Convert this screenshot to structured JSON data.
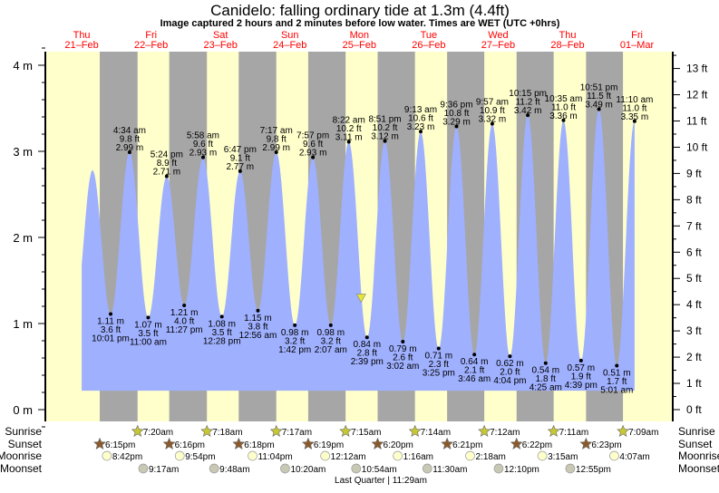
{
  "chart_data": {
    "type": "area",
    "title": "Canidelo: falling  ordinary tide at 1.3m (4.4ft)",
    "subtitle": "Image captured 2 hours and 2 minutes before low water. Times are WET (UTC +0hrs)",
    "ylabel_left_unit": "m",
    "ylabel_right_unit": "ft",
    "ylim_m": [
      -0.15,
      4.15
    ],
    "left_ticks": [
      "0 m",
      "1 m",
      "2 m",
      "3 m",
      "4 m"
    ],
    "right_ticks": [
      "0 ft",
      "1 ft",
      "2 ft",
      "3 ft",
      "4 ft",
      "5 ft",
      "6 ft",
      "7 ft",
      "8 ft",
      "9 ft",
      "10 ft",
      "11 ft",
      "12 ft",
      "13 ft"
    ],
    "days": [
      {
        "dow": "Thu",
        "date": "21–Feb"
      },
      {
        "dow": "Fri",
        "date": "22–Feb"
      },
      {
        "dow": "Sat",
        "date": "23–Feb"
      },
      {
        "dow": "Sun",
        "date": "24–Feb"
      },
      {
        "dow": "Mon",
        "date": "25–Feb"
      },
      {
        "dow": "Tue",
        "date": "26–Feb"
      },
      {
        "dow": "Wed",
        "date": "27–Feb"
      },
      {
        "dow": "Thu",
        "date": "28–Feb"
      },
      {
        "dow": "Fri",
        "date": "01–Mar"
      }
    ],
    "current_level": {
      "m": 1.3,
      "ft": 4.4,
      "state": "falling",
      "day": 4,
      "time": "12:37 pm"
    },
    "unlabeled_start": [
      {
        "day": 0,
        "time": "9:30 am",
        "m": 1.1
      },
      {
        "day": 0,
        "time": "3:45 pm",
        "m": 2.78
      }
    ],
    "events": [
      {
        "type": "low",
        "day": 0,
        "time": "10:01 pm",
        "ft": "3.6 ft",
        "m": "1.11 m",
        "value": 1.11
      },
      {
        "type": "high",
        "day": 1,
        "time": "4:34 am",
        "ft": "9.8 ft",
        "m": "2.99 m",
        "value": 2.99
      },
      {
        "type": "low",
        "day": 1,
        "time": "11:00 am",
        "ft": "3.5 ft",
        "m": "1.07 m",
        "value": 1.07
      },
      {
        "type": "high",
        "day": 1,
        "time": "5:24 pm",
        "ft": "8.9 ft",
        "m": "2.71 m",
        "value": 2.71
      },
      {
        "type": "low",
        "day": 1,
        "time": "11:27 pm",
        "ft": "4.0 ft",
        "m": "1.21 m",
        "value": 1.21
      },
      {
        "type": "high",
        "day": 2,
        "time": "5:58 am",
        "ft": "9.6 ft",
        "m": "2.93 m",
        "value": 2.93
      },
      {
        "type": "low",
        "day": 2,
        "time": "12:28 pm",
        "ft": "3.5 ft",
        "m": "1.08 m",
        "value": 1.08
      },
      {
        "type": "high",
        "day": 2,
        "time": "6:47 pm",
        "ft": "9.1 ft",
        "m": "2.77 m",
        "value": 2.77
      },
      {
        "type": "low",
        "day": 3,
        "time": "12:56 am",
        "ft": "3.8 ft",
        "m": "1.15 m",
        "value": 1.15
      },
      {
        "type": "high",
        "day": 3,
        "time": "7:17 am",
        "ft": "9.8 ft",
        "m": "2.99 m",
        "value": 2.99
      },
      {
        "type": "low",
        "day": 3,
        "time": "1:42 pm",
        "ft": "3.2 ft",
        "m": "0.98 m",
        "value": 0.98
      },
      {
        "type": "high",
        "day": 3,
        "time": "7:57 pm",
        "ft": "9.6 ft",
        "m": "2.93 m",
        "value": 2.93
      },
      {
        "type": "low",
        "day": 4,
        "time": "2:07 am",
        "ft": "3.2 ft",
        "m": "0.98 m",
        "value": 0.98
      },
      {
        "type": "high",
        "day": 4,
        "time": "8:22 am",
        "ft": "10.2 ft",
        "m": "3.11 m",
        "value": 3.11
      },
      {
        "type": "low",
        "day": 4,
        "time": "2:39 pm",
        "ft": "2.8 ft",
        "m": "0.84 m",
        "value": 0.84
      },
      {
        "type": "high",
        "day": 4,
        "time": "8:51 pm",
        "ft": "10.2 ft",
        "m": "3.12 m",
        "value": 3.12
      },
      {
        "type": "low",
        "day": 5,
        "time": "3:02 am",
        "ft": "2.6 ft",
        "m": "0.79 m",
        "value": 0.79
      },
      {
        "type": "high",
        "day": 5,
        "time": "9:13 am",
        "ft": "10.6 ft",
        "m": "3.23 m",
        "value": 3.23
      },
      {
        "type": "low",
        "day": 5,
        "time": "3:25 pm",
        "ft": "2.3 ft",
        "m": "0.71 m",
        "value": 0.71
      },
      {
        "type": "high",
        "day": 5,
        "time": "9:36 pm",
        "ft": "10.8 ft",
        "m": "3.29 m",
        "value": 3.29
      },
      {
        "type": "low",
        "day": 6,
        "time": "3:46 am",
        "ft": "2.1 ft",
        "m": "0.64 m",
        "value": 0.64
      },
      {
        "type": "high",
        "day": 6,
        "time": "9:57 am",
        "ft": "10.9 ft",
        "m": "3.32 m",
        "value": 3.32
      },
      {
        "type": "low",
        "day": 6,
        "time": "4:04 pm",
        "ft": "2.0 ft",
        "m": "0.62 m",
        "value": 0.62
      },
      {
        "type": "high",
        "day": 6,
        "time": "10:15 pm",
        "ft": "11.2 ft",
        "m": "3.42 m",
        "value": 3.42
      },
      {
        "type": "low",
        "day": 7,
        "time": "4:25 am",
        "ft": "1.8 ft",
        "m": "0.54 m",
        "value": 0.54
      },
      {
        "type": "high",
        "day": 7,
        "time": "10:35 am",
        "ft": "11.0 ft",
        "m": "3.36 m",
        "value": 3.36
      },
      {
        "type": "low",
        "day": 7,
        "time": "4:39 pm",
        "ft": "1.9 ft",
        "m": "0.57 m",
        "value": 0.57
      },
      {
        "type": "high",
        "day": 7,
        "time": "10:51 pm",
        "ft": "11.5 ft",
        "m": "3.49 m",
        "value": 3.49
      },
      {
        "type": "low",
        "day": 8,
        "time": "5:01 am",
        "ft": "1.7 ft",
        "m": "0.51 m",
        "value": 0.51
      },
      {
        "type": "high",
        "day": 8,
        "time": "11:10 am",
        "ft": "11.0 ft",
        "m": "3.35 m",
        "value": 3.35
      }
    ],
    "astro": {
      "labels": {
        "sunrise": "Sunrise",
        "sunset": "Sunset",
        "moonrise": "Moonrise",
        "moonset": "Moonset"
      },
      "sunrise": [
        {
          "day": 1,
          "time": "7:20am"
        },
        {
          "day": 2,
          "time": "7:18am"
        },
        {
          "day": 3,
          "time": "7:17am"
        },
        {
          "day": 4,
          "time": "7:15am"
        },
        {
          "day": 5,
          "time": "7:14am"
        },
        {
          "day": 6,
          "time": "7:12am"
        },
        {
          "day": 7,
          "time": "7:11am"
        },
        {
          "day": 8,
          "time": "7:09am"
        }
      ],
      "sunset": [
        {
          "day": 0,
          "time": "6:15pm"
        },
        {
          "day": 1,
          "time": "6:16pm"
        },
        {
          "day": 2,
          "time": "6:18pm"
        },
        {
          "day": 3,
          "time": "6:19pm"
        },
        {
          "day": 4,
          "time": "6:20pm"
        },
        {
          "day": 5,
          "time": "6:21pm"
        },
        {
          "day": 6,
          "time": "6:22pm"
        },
        {
          "day": 7,
          "time": "6:23pm"
        }
      ],
      "moonrise": [
        {
          "day": 0,
          "time": "8:42pm"
        },
        {
          "day": 1,
          "time": "9:54pm"
        },
        {
          "day": 2,
          "time": "11:04pm"
        },
        {
          "day": 4,
          "time": "12:12am"
        },
        {
          "day": 5,
          "time": "1:16am"
        },
        {
          "day": 6,
          "time": "2:18am"
        },
        {
          "day": 7,
          "time": "3:15am"
        },
        {
          "day": 8,
          "time": "4:07am"
        }
      ],
      "moonset": [
        {
          "day": 1,
          "time": "9:17am"
        },
        {
          "day": 2,
          "time": "9:48am"
        },
        {
          "day": 3,
          "time": "10:20am"
        },
        {
          "day": 4,
          "time": "10:54am"
        },
        {
          "day": 5,
          "time": "11:30am"
        },
        {
          "day": 6,
          "time": "12:10pm"
        },
        {
          "day": 7,
          "time": "12:55pm"
        }
      ],
      "moon_phase": "Last Quarter | 11:29am"
    },
    "colors": {
      "day": "#ffffcc",
      "night": "#a6a6a6",
      "water": "#9fb0ff",
      "date": "#ff0000",
      "sunrise": "#c8c832",
      "sunset": "#8b5a2b",
      "moonrise": "#ffffcc",
      "moonset": "#c8c8b4",
      "marker": "#e6e632"
    }
  }
}
